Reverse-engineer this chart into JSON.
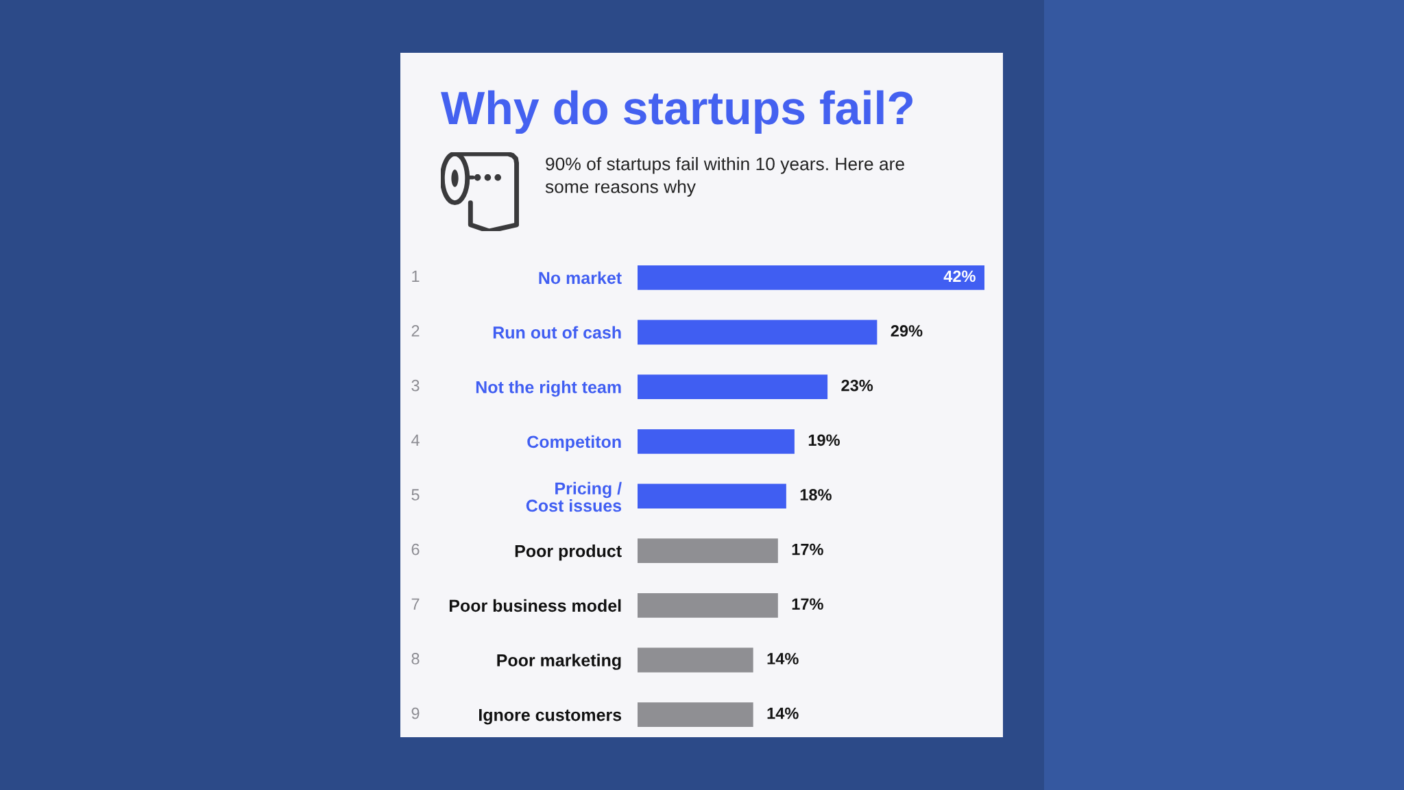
{
  "chart_data": {
    "type": "bar",
    "orientation": "horizontal",
    "title": "Why do startups fail?",
    "subtitle": "90% of startups fail within 10 years. Here are some reasons why",
    "categories": [
      "No market",
      "Run out of cash",
      "Not the right team",
      "Competiton",
      "Pricing /\nCost issues",
      "Poor product",
      "Poor business model",
      "Poor marketing",
      "Ignore customers"
    ],
    "values": [
      42,
      29,
      23,
      19,
      18,
      17,
      17,
      14,
      14
    ],
    "colors": [
      "#405ef2",
      "#405ef2",
      "#405ef2",
      "#405ef2",
      "#405ef2",
      "#8f8f93",
      "#8f8f93",
      "#8f8f93",
      "#8f8f93"
    ],
    "value_labels": [
      "42%",
      "29%",
      "23%",
      "19%",
      "18%",
      "17%",
      "17%",
      "14%",
      "14%"
    ],
    "annotations": [
      "1",
      "2",
      "3",
      "4",
      "5",
      "6",
      "7",
      "8",
      "9"
    ],
    "tick_labels": "y"
  }
}
